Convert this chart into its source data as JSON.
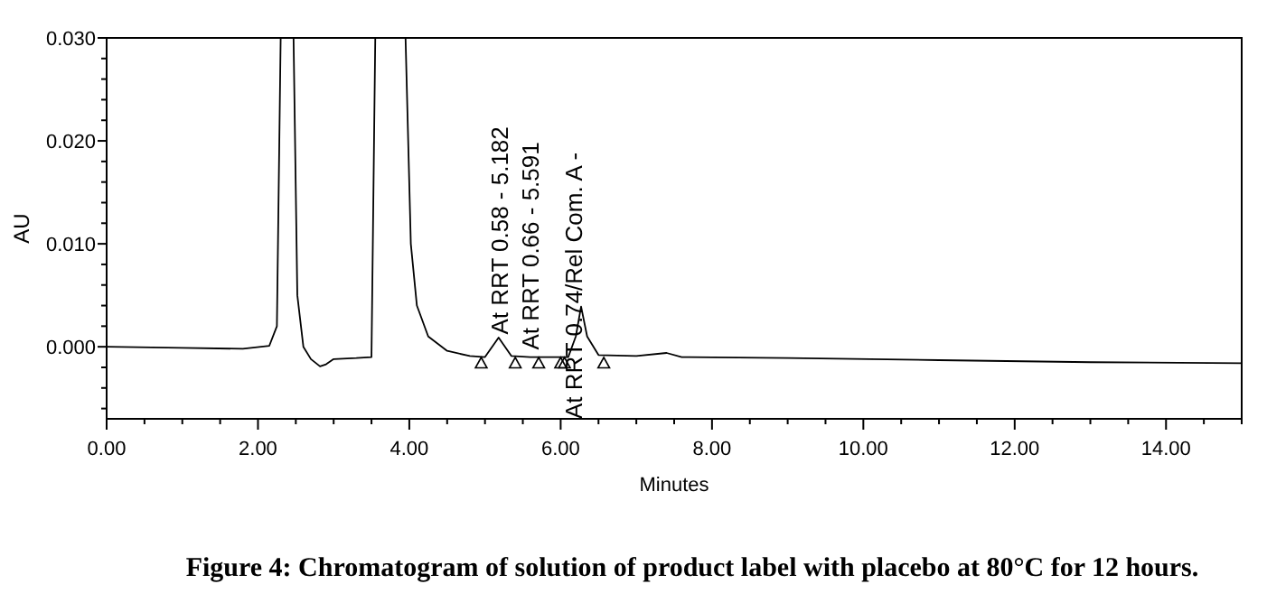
{
  "chart_data": {
    "type": "line",
    "title": "Figure 4: Chromatogram of solution of product label with placebo at 80°C for 12 hours.",
    "xlabel": "Minutes",
    "ylabel": "AU",
    "xlim": [
      0,
      15
    ],
    "ylim": [
      -0.007,
      0.03
    ],
    "xticks": [
      {
        "value": 0,
        "label": "0.00"
      },
      {
        "value": 0.5,
        "label": null
      },
      {
        "value": 1,
        "label": null
      },
      {
        "value": 1.5,
        "label": null
      },
      {
        "value": 2,
        "label": "2.00"
      },
      {
        "value": 2.5,
        "label": null
      },
      {
        "value": 3,
        "label": null
      },
      {
        "value": 3.5,
        "label": null
      },
      {
        "value": 4,
        "label": "4.00"
      },
      {
        "value": 4.5,
        "label": null
      },
      {
        "value": 5,
        "label": null
      },
      {
        "value": 5.5,
        "label": null
      },
      {
        "value": 6,
        "label": "6.00"
      },
      {
        "value": 6.5,
        "label": null
      },
      {
        "value": 7,
        "label": null
      },
      {
        "value": 7.5,
        "label": null
      },
      {
        "value": 8,
        "label": "8.00"
      },
      {
        "value": 8.5,
        "label": null
      },
      {
        "value": 9,
        "label": null
      },
      {
        "value": 9.5,
        "label": null
      },
      {
        "value": 10,
        "label": "10.00"
      },
      {
        "value": 10.5,
        "label": null
      },
      {
        "value": 11,
        "label": null
      },
      {
        "value": 11.5,
        "label": null
      },
      {
        "value": 12,
        "label": "12.00"
      },
      {
        "value": 12.5,
        "label": null
      },
      {
        "value": 13,
        "label": null
      },
      {
        "value": 13.5,
        "label": null
      },
      {
        "value": 14,
        "label": "14.00"
      },
      {
        "value": 14.5,
        "label": null
      },
      {
        "value": 15,
        "label": null
      }
    ],
    "yticks": [
      {
        "value": -0.006,
        "label": null
      },
      {
        "value": -0.004,
        "label": null
      },
      {
        "value": -0.002,
        "label": null
      },
      {
        "value": 0,
        "label": "0.000"
      },
      {
        "value": 0.002,
        "label": null
      },
      {
        "value": 0.004,
        "label": null
      },
      {
        "value": 0.006,
        "label": null
      },
      {
        "value": 0.008,
        "label": null
      },
      {
        "value": 0.01,
        "label": "0.010"
      },
      {
        "value": 0.012,
        "label": null
      },
      {
        "value": 0.014,
        "label": null
      },
      {
        "value": 0.016,
        "label": null
      },
      {
        "value": 0.018,
        "label": null
      },
      {
        "value": 0.02,
        "label": "0.020"
      },
      {
        "value": 0.022,
        "label": null
      },
      {
        "value": 0.024,
        "label": null
      },
      {
        "value": 0.026,
        "label": null
      },
      {
        "value": 0.028,
        "label": null
      },
      {
        "value": 0.03,
        "label": "0.030"
      }
    ],
    "grid": false,
    "series": [
      {
        "color": "#000000",
        "x": [
          0,
          1,
          1.8,
          2.15,
          2.25,
          2.3,
          2.47,
          2.52,
          2.6,
          2.7,
          2.82,
          2.9,
          3.0,
          3.3,
          3.5,
          3.55,
          3.95,
          4.02,
          4.1,
          4.25,
          4.5,
          4.8,
          5.0,
          5.18,
          5.35,
          5.6,
          6.1,
          6.2,
          6.27,
          6.35,
          6.5,
          7.0,
          7.4,
          7.6,
          9,
          11,
          13,
          15
        ],
        "values": [
          0,
          -0.0001,
          -0.0002,
          0.0001,
          0.002,
          0.03,
          0.03,
          0.005,
          0.0,
          -0.0012,
          -0.0019,
          -0.0017,
          -0.0012,
          -0.0011,
          -0.001,
          0.03,
          0.03,
          0.01,
          0.004,
          0.001,
          -0.0004,
          -0.0009,
          -0.001,
          0.0009,
          -0.0009,
          -0.001,
          -0.001,
          0.001,
          0.0039,
          0.001,
          -0.0008,
          -0.0009,
          -0.0006,
          -0.001,
          -0.0011,
          -0.0013,
          -0.0015,
          -0.0016
        ]
      },
      {
        "type": "scatter",
        "color": "#000000",
        "marker": "triangle",
        "x": [
          4.95,
          5.4,
          5.71,
          6.0,
          6.05,
          6.57
        ],
        "values": [
          -0.0016,
          -0.0016,
          -0.0016,
          -0.0016,
          -0.0016,
          -0.0016
        ]
      }
    ],
    "annotations": [
      {
        "text": "At RRT 0.58 - 5.182",
        "x": 5.18,
        "y": 0.0012
      },
      {
        "text": "At RRT 0.66 - 5.591",
        "x": 5.59,
        "y": -0.0003
      },
      "At RRT 0.74/Rel Com. A -"
    ]
  }
}
